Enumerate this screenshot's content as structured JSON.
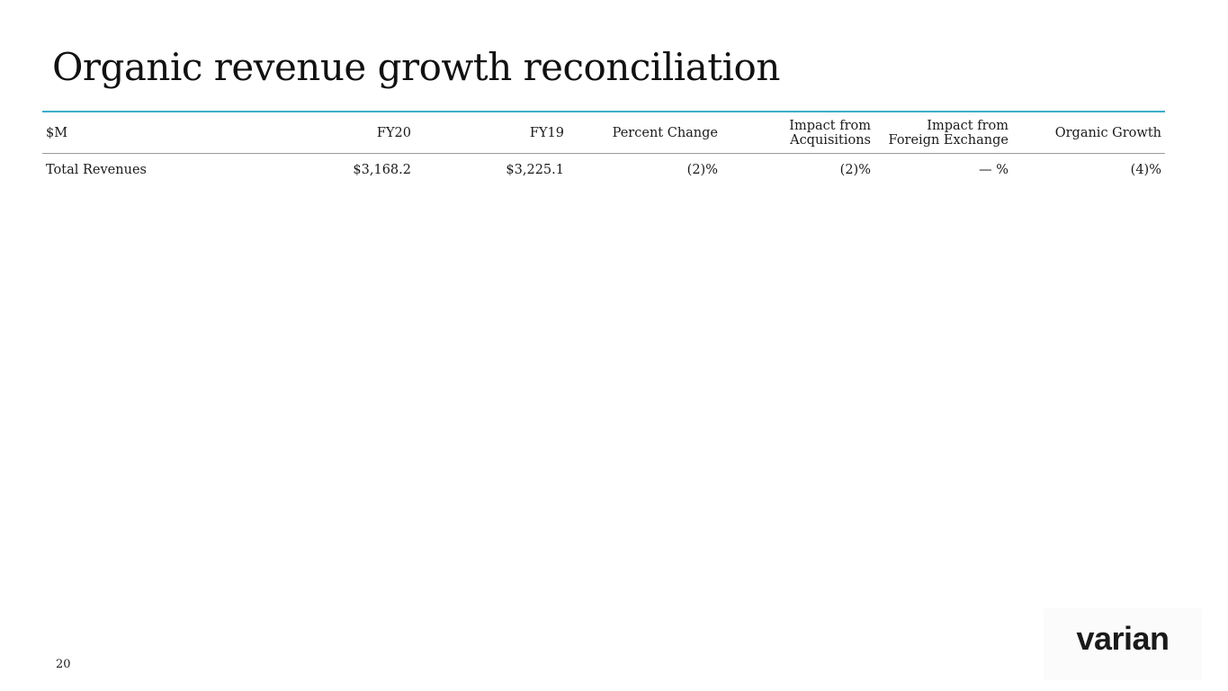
{
  "title": "Organic revenue growth reconciliation",
  "table": {
    "headers": {
      "label": "$M",
      "fy20": "FY20",
      "fy19": "FY19",
      "pct_change": "Percent Change",
      "acq_line1": "Impact from",
      "acq_line2": "Acquisitions",
      "fx_line1": "Impact from",
      "fx_line2": "Foreign Exchange",
      "organic": "Organic Growth"
    },
    "rows": [
      {
        "label": "Total Revenues",
        "fy20": "$3,168.2",
        "fy19": "$3,225.1",
        "pct_change": "(2)%",
        "acquisitions": "(2)%",
        "fx": "— %",
        "organic": "(4)%"
      }
    ]
  },
  "page_number": "20",
  "logo": {
    "text": "varian",
    "color": "#1a1a1a"
  },
  "accent_color": "#3aaec9"
}
